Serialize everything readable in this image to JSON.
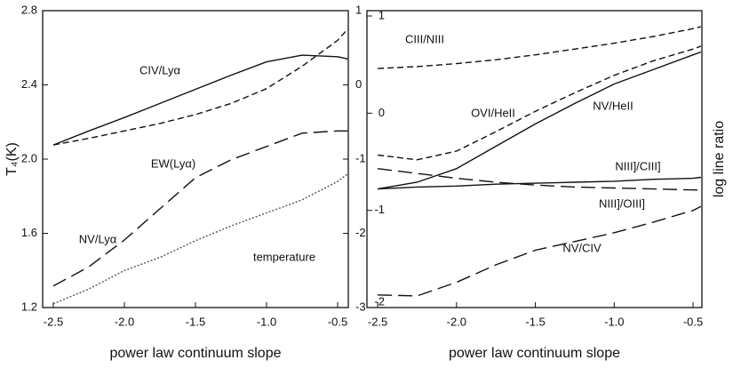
{
  "chart_data": [
    {
      "type": "line",
      "ylabel": "T₄(K)",
      "xlabel": "power law continuum slope",
      "x": [
        -2.5,
        -2.25,
        -2.0,
        -1.75,
        -1.5,
        -1.25,
        -1.0,
        -0.75,
        -0.5,
        -0.43
      ],
      "xlim": [
        -2.575,
        -0.425
      ],
      "xticks": [
        -2.5,
        {
          "value": -2,
          "label": "-2.0"
        },
        -1.5,
        {
          "value": -1,
          "label": "-1.0"
        },
        -0.5
      ],
      "ylim": [
        1.2,
        2.8
      ],
      "yticks": [
        1.2,
        1.6,
        {
          "value": 2,
          "label": "2.0"
        },
        2.4,
        2.8
      ],
      "y2lim": [
        -3,
        1
      ],
      "y2ticks": [
        -3,
        -2,
        -1,
        0,
        1
      ],
      "series": [
        {
          "name": "CIV/Lyα",
          "color": "#111",
          "style": "solid",
          "axis": "y2",
          "values": [
            -0.81,
            -0.62,
            -0.44,
            -0.25,
            -0.06,
            0.13,
            0.31,
            0.4,
            0.38,
            0.35
          ]
        },
        {
          "name": "EW(Lyα)",
          "color": "#111",
          "style": "dashed",
          "axis": "y2",
          "values": [
            -0.81,
            -0.72,
            -0.62,
            -0.52,
            -0.4,
            -0.25,
            -0.05,
            0.25,
            0.6,
            0.75
          ]
        },
        {
          "name": "NV/Lyα",
          "color": "#111",
          "style": "longdash",
          "axis": "y2",
          "values": [
            -2.71,
            -2.45,
            -2.09,
            -1.67,
            -1.25,
            -1.01,
            -0.83,
            -0.65,
            -0.62,
            -0.62
          ]
        },
        {
          "name": "temperature",
          "color": "#555",
          "style": "dotted",
          "values": [
            1.22,
            1.3,
            1.4,
            1.47,
            1.56,
            1.64,
            1.71,
            1.78,
            1.88,
            1.92
          ]
        }
      ]
    },
    {
      "type": "line",
      "ylabel": "log line ratio",
      "xlabel": "power law continuum slope",
      "x": [
        -2.5,
        -2.25,
        -2.0,
        -1.75,
        -1.5,
        -1.25,
        -1.0,
        -0.75,
        -0.5,
        -0.45
      ],
      "xlim": [
        -2.568,
        -0.444
      ],
      "xticks": [
        -2.5,
        {
          "value": -2,
          "label": "-2.0"
        },
        -1.5,
        {
          "value": -1,
          "label": "-1.0"
        },
        -0.5
      ],
      "ylim": [
        -2,
        1.055
      ],
      "yticks": [
        -2,
        -1,
        0,
        1
      ],
      "series": [
        {
          "name": "CIII/NIII",
          "color": "#111",
          "style": "dashed",
          "values": [
            0.46,
            0.48,
            0.51,
            0.55,
            0.6,
            0.66,
            0.72,
            0.79,
            0.87,
            0.89
          ]
        },
        {
          "name": "OVI/HeII",
          "color": "#111",
          "style": "dashed",
          "values": [
            -0.43,
            -0.48,
            -0.39,
            -0.19,
            0.02,
            0.21,
            0.39,
            0.54,
            0.66,
            0.69
          ]
        },
        {
          "name": "NV/HeII",
          "color": "#111",
          "style": "solid",
          "values": [
            -0.78,
            -0.71,
            -0.57,
            -0.34,
            -0.11,
            0.1,
            0.3,
            0.45,
            0.6,
            0.63
          ]
        },
        {
          "name": "NIII]/CIII]",
          "color": "#111",
          "style": "solid",
          "values": [
            -0.78,
            -0.76,
            -0.75,
            -0.73,
            -0.72,
            -0.71,
            -0.7,
            -0.68,
            -0.67,
            -0.66
          ]
        },
        {
          "name": "NIII]/OIII]",
          "color": "#111",
          "style": "longdash",
          "values": [
            -0.57,
            -0.62,
            -0.67,
            -0.71,
            -0.74,
            -0.76,
            -0.77,
            -0.78,
            -0.79,
            -0.79
          ]
        },
        {
          "name": "NV/CIV",
          "color": "#111",
          "style": "longdash",
          "values": [
            -1.87,
            -1.88,
            -1.74,
            -1.56,
            -1.41,
            -1.32,
            -1.23,
            -1.12,
            -1.0,
            -0.96
          ]
        }
      ]
    }
  ]
}
